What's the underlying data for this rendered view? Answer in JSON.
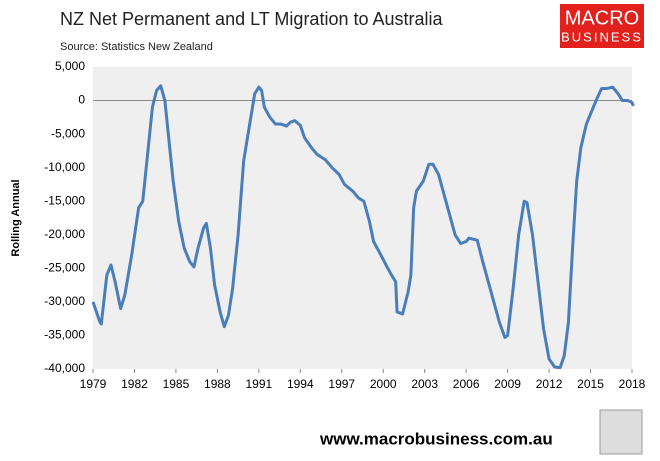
{
  "chart_data": {
    "type": "line",
    "title": "NZ Net Permanent and LT Migration to Australia",
    "subtitle": "Source: Statistics New Zealand",
    "y_label": "Rolling Annual",
    "logo": {
      "line1": "MACRO",
      "line2": "BUSINESS"
    },
    "footer": "www.macrobusiness.com.au",
    "xlim": [
      1979,
      2018
    ],
    "xticks": [
      1979,
      1982,
      1985,
      1988,
      1991,
      1994,
      1997,
      2000,
      2003,
      2006,
      2009,
      2012,
      2015,
      2018
    ],
    "ylim": [
      -40000,
      5000
    ],
    "yticks": [
      {
        "value": 5000,
        "label": "5,000"
      },
      0,
      {
        "value": -5000,
        "label": "-5,000"
      },
      {
        "value": -10000,
        "label": "-10,000"
      },
      {
        "value": -15000,
        "label": "-15,000"
      },
      {
        "value": -20000,
        "label": "-20,000"
      },
      {
        "value": -25000,
        "label": "-25,000"
      },
      {
        "value": -30000,
        "label": "-30,000"
      },
      {
        "value": -35000,
        "label": "-35,000"
      },
      {
        "value": -40000,
        "label": "-40,000"
      }
    ],
    "zero_line": true,
    "background": "#efefef",
    "series": [
      {
        "name": "Rolling Annual",
        "color": "#4a7ebb",
        "x": [
          1979.0,
          1979.5,
          1979.6,
          1980.0,
          1980.3,
          1980.6,
          1981.0,
          1981.3,
          1981.8,
          1982.3,
          1982.6,
          1983.0,
          1983.3,
          1983.6,
          1983.9,
          1984.2,
          1984.5,
          1984.8,
          1985.2,
          1985.6,
          1986.0,
          1986.3,
          1986.6,
          1987.0,
          1987.2,
          1987.5,
          1987.8,
          1988.2,
          1988.5,
          1988.8,
          1989.1,
          1989.5,
          1989.9,
          1990.3,
          1990.7,
          1991.0,
          1991.2,
          1991.4,
          1991.8,
          1992.2,
          1992.6,
          1993.0,
          1993.3,
          1993.6,
          1994.0,
          1994.3,
          1994.8,
          1995.2,
          1995.8,
          1996.3,
          1996.8,
          1997.2,
          1997.8,
          1998.2,
          1998.6,
          1999.0,
          1999.3,
          1999.7,
          2000.2,
          2000.6,
          2000.9,
          2001.0,
          2001.4,
          2001.8,
          2002.0,
          2002.2,
          2002.4,
          2002.9,
          2003.3,
          2003.6,
          2004.0,
          2004.4,
          2004.8,
          2005.2,
          2005.6,
          2006.0,
          2006.2,
          2006.8,
          2007.2,
          2007.6,
          2008.0,
          2008.4,
          2008.8,
          2009.0,
          2009.4,
          2009.8,
          2010.2,
          2010.4,
          2010.8,
          2011.2,
          2011.6,
          2012.0,
          2012.4,
          2012.8,
          2013.1,
          2013.4,
          2013.7,
          2014.0,
          2014.3,
          2014.7,
          2015.0,
          2015.4,
          2015.8,
          2016.2,
          2016.6,
          2017.0,
          2017.3,
          2017.7,
          2018.0,
          2018.1
        ],
        "values": [
          -30000,
          -33000,
          -33300,
          -26000,
          -24500,
          -27000,
          -31000,
          -29000,
          -23000,
          -16000,
          -15000,
          -7000,
          -1000,
          1500,
          2200,
          0,
          -6000,
          -12000,
          -18000,
          -22000,
          -24000,
          -24800,
          -22000,
          -19000,
          -18300,
          -22000,
          -27500,
          -31500,
          -33700,
          -32000,
          -28000,
          -20000,
          -9000,
          -4000,
          1000,
          2000,
          1500,
          -1000,
          -2500,
          -3500,
          -3500,
          -3800,
          -3200,
          -3000,
          -3700,
          -5500,
          -7000,
          -8000,
          -8800,
          -10000,
          -11000,
          -12500,
          -13500,
          -14500,
          -15000,
          -18000,
          -21000,
          -22500,
          -24500,
          -26000,
          -27000,
          -31500,
          -31800,
          -28500,
          -26000,
          -16000,
          -13500,
          -12000,
          -9500,
          -9500,
          -11000,
          -14000,
          -17000,
          -20000,
          -21300,
          -21000,
          -20500,
          -20800,
          -24000,
          -27000,
          -30000,
          -33000,
          -35300,
          -35000,
          -28000,
          -20000,
          -15000,
          -15200,
          -20000,
          -27000,
          -34000,
          -38500,
          -39700,
          -39800,
          -38000,
          -33000,
          -22000,
          -12000,
          -7000,
          -3500,
          -2000,
          0,
          1800,
          1800,
          2000,
          1000,
          0,
          0,
          -300,
          -800
        ]
      }
    ]
  }
}
